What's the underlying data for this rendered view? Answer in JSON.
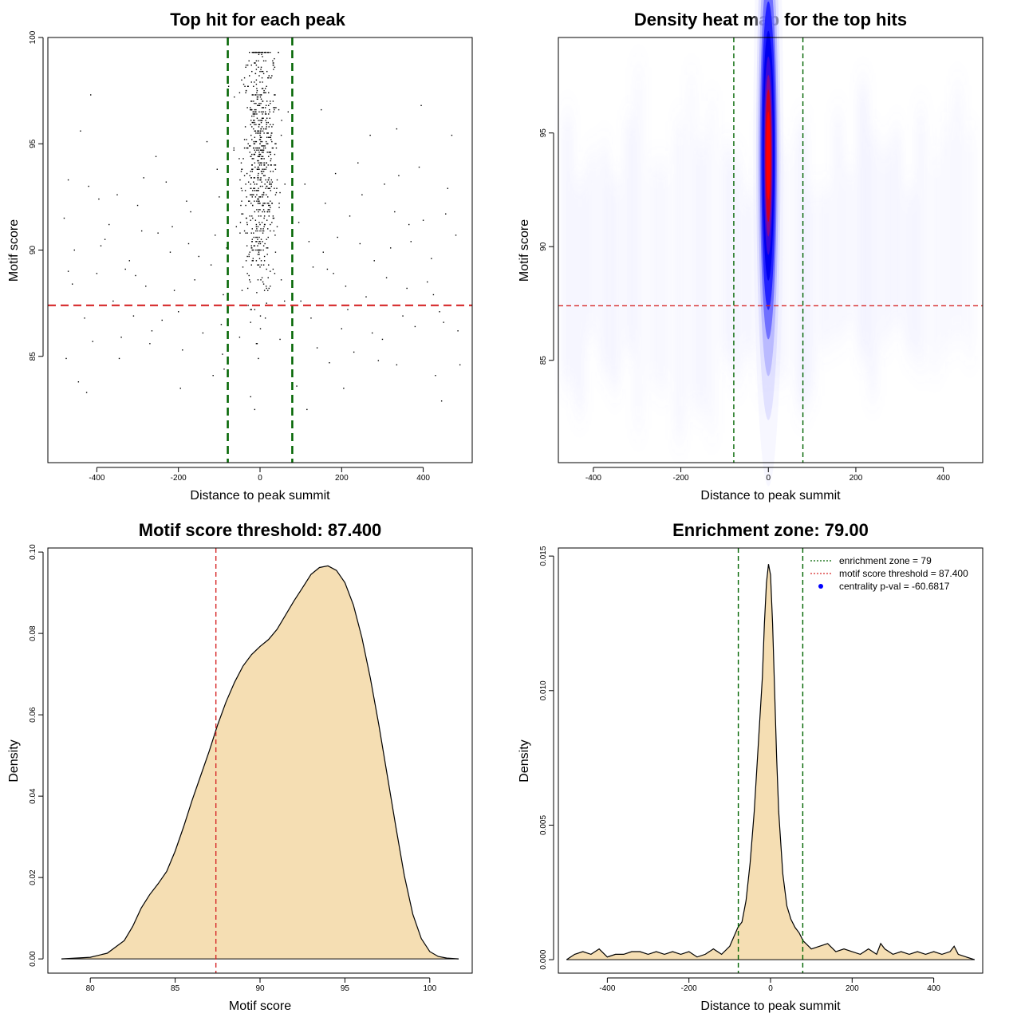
{
  "colors": {
    "threshold_line": "#d62728",
    "zone_line": "#006400",
    "density_fill": "#f5deb3",
    "point": "#000000",
    "heat_low": "#ffffff",
    "heat_mid": "#0000ff",
    "heat_high": "#ff0000",
    "legend_point": "#0000ff"
  },
  "chart_data": [
    {
      "type": "scatter",
      "title": "Top hit for each peak",
      "xlabel": "Distance to peak summit",
      "ylabel": "Motif score",
      "xlim": [
        -520,
        520
      ],
      "ylim": [
        80,
        100
      ],
      "xticks": [
        "-400",
        "-200",
        "0",
        "200",
        "400"
      ],
      "yticks": [
        "85",
        "90",
        "95",
        "100"
      ],
      "vlines": [
        -79,
        79
      ],
      "hline": 87.4,
      "points": [
        [
          -480,
          91.5
        ],
        [
          -470,
          89
        ],
        [
          -455,
          90
        ],
        [
          -440,
          95.6
        ],
        [
          -420,
          93
        ],
        [
          -410,
          85.7
        ],
        [
          -400,
          88.9
        ],
        [
          -390,
          90.2
        ],
        [
          -370,
          91.2
        ],
        [
          -350,
          92.6
        ],
        [
          -340,
          85.9
        ],
        [
          -320,
          89.5
        ],
        [
          -300,
          92.1
        ],
        [
          -280,
          88.3
        ],
        [
          -265,
          86.2
        ],
        [
          -250,
          90.8
        ],
        [
          -230,
          93.2
        ],
        [
          -210,
          88.1
        ],
        [
          -190,
          85.3
        ],
        [
          -170,
          91.8
        ],
        [
          -150,
          89.7
        ],
        [
          -130,
          95.1
        ],
        [
          -115,
          84.1
        ],
        [
          -100,
          92.5
        ],
        [
          -90,
          87.9
        ],
        [
          -82,
          90.1
        ],
        [
          -475,
          84.9
        ],
        [
          -445,
          83.8
        ],
        [
          -430,
          86.8
        ],
        [
          -380,
          90.5
        ],
        [
          -360,
          87.6
        ],
        [
          -330,
          89.1
        ],
        [
          -310,
          86.9
        ],
        [
          -290,
          90.9
        ],
        [
          -270,
          85.6
        ],
        [
          -240,
          86.7
        ],
        [
          -220,
          89.9
        ],
        [
          -200,
          87.1
        ],
        [
          -180,
          92.3
        ],
        [
          -160,
          88.6
        ],
        [
          -140,
          86.1
        ],
        [
          -120,
          89.3
        ],
        [
          -105,
          93.8
        ],
        [
          -95,
          86.5
        ],
        [
          -88,
          84.4
        ],
        [
          -460,
          88.4
        ],
        [
          -415,
          97.3
        ],
        [
          -395,
          92.4
        ],
        [
          -345,
          84.9
        ],
        [
          -305,
          88.8
        ],
        [
          -255,
          94.4
        ],
        [
          -215,
          91.1
        ],
        [
          -175,
          90.3
        ],
        [
          -135,
          87.4
        ],
        [
          -110,
          90.7
        ],
        [
          -92,
          85.1
        ],
        [
          -470,
          93.3
        ],
        [
          -425,
          83.3
        ],
        [
          -285,
          93.4
        ],
        [
          -195,
          83.5
        ],
        [
          100,
          87.6
        ],
        [
          120,
          90.4
        ],
        [
          140,
          85.4
        ],
        [
          160,
          92.2
        ],
        [
          180,
          88.9
        ],
        [
          200,
          86.3
        ],
        [
          220,
          91.6
        ],
        [
          240,
          94.1
        ],
        [
          260,
          87.8
        ],
        [
          280,
          89.5
        ],
        [
          300,
          85.8
        ],
        [
          320,
          90.1
        ],
        [
          340,
          93.5
        ],
        [
          360,
          88.2
        ],
        [
          380,
          86.4
        ],
        [
          400,
          91.4
        ],
        [
          420,
          89.6
        ],
        [
          440,
          87.1
        ],
        [
          460,
          92.9
        ],
        [
          480,
          90.7
        ],
        [
          90,
          83.6
        ],
        [
          110,
          93.1
        ],
        [
          130,
          89.2
        ],
        [
          150,
          96.6
        ],
        [
          170,
          84.7
        ],
        [
          190,
          90.6
        ],
        [
          210,
          88.3
        ],
        [
          230,
          85.2
        ],
        [
          250,
          92.6
        ],
        [
          270,
          95.4
        ],
        [
          290,
          84.8
        ],
        [
          310,
          88.7
        ],
        [
          330,
          91.8
        ],
        [
          350,
          86.9
        ],
        [
          370,
          90.4
        ],
        [
          390,
          93.9
        ],
        [
          410,
          88.5
        ],
        [
          430,
          84.1
        ],
        [
          450,
          86.6
        ],
        [
          470,
          95.4
        ],
        [
          95,
          91.3
        ],
        [
          125,
          86.8
        ],
        [
          155,
          89.9
        ],
        [
          185,
          93.6
        ],
        [
          215,
          87.2
        ],
        [
          245,
          90.3
        ],
        [
          275,
          86.1
        ],
        [
          305,
          93.1
        ],
        [
          335,
          84.6
        ],
        [
          365,
          91.2
        ],
        [
          395,
          96.8
        ],
        [
          425,
          87.9
        ],
        [
          455,
          91.7
        ],
        [
          485,
          86.2
        ],
        [
          490,
          84.6
        ],
        [
          445,
          82.9
        ],
        [
          205,
          83.5
        ],
        [
          165,
          89.1
        ],
        [
          115,
          82.5
        ],
        [
          335,
          95.7
        ]
      ],
      "central_points": 700,
      "central_sd": 22,
      "central_yrange": [
        82.5,
        99.3
      ]
    },
    {
      "type": "heatmap",
      "title": "Density heat map for the top hits",
      "xlabel": "Distance to peak summit",
      "ylabel": "Motif score",
      "xlim": [
        -480,
        490
      ],
      "ylim": [
        80.5,
        99.2
      ],
      "xticks": [
        "-400",
        "-200",
        "0",
        "200",
        "400"
      ],
      "yticks": [
        "85",
        "90",
        "95"
      ],
      "vlines": [
        -79,
        79
      ],
      "hline": 87.4,
      "peak": {
        "x": 0,
        "y": 94,
        "sx": 14,
        "sy": 3.4
      }
    },
    {
      "type": "area",
      "title": "Motif score threshold: 87.400",
      "xlabel": "Motif score",
      "ylabel": "Density",
      "xlim": [
        77.5,
        102.5
      ],
      "ylim": [
        -0.0035,
        0.101
      ],
      "xticks": [
        "80",
        "85",
        "90",
        "95",
        "100"
      ],
      "yticks": [
        "0.00",
        "0.02",
        "0.04",
        "0.06",
        "0.08",
        "0.10"
      ],
      "vline": 87.4,
      "x": [
        78.3,
        80,
        81,
        82,
        82.5,
        83,
        83.5,
        84,
        84.5,
        85,
        85.5,
        86,
        86.5,
        87,
        87.5,
        88,
        88.5,
        89,
        89.5,
        90,
        90.5,
        91,
        91.5,
        92,
        92.5,
        93,
        93.5,
        94,
        94.5,
        95,
        95.5,
        96,
        96.5,
        97,
        97.5,
        98,
        98.5,
        99,
        99.5,
        100,
        100.5,
        101,
        101.7
      ],
      "y": [
        0.0,
        0.0004,
        0.0014,
        0.0045,
        0.008,
        0.0125,
        0.0158,
        0.0185,
        0.0215,
        0.0265,
        0.0325,
        0.039,
        0.045,
        0.051,
        0.0575,
        0.0632,
        0.068,
        0.072,
        0.0748,
        0.0768,
        0.0785,
        0.081,
        0.0845,
        0.088,
        0.0912,
        0.0945,
        0.0962,
        0.0966,
        0.0955,
        0.0925,
        0.087,
        0.079,
        0.069,
        0.0575,
        0.045,
        0.0325,
        0.0205,
        0.011,
        0.005,
        0.0018,
        0.0006,
        0.0002,
        0.0
      ]
    },
    {
      "type": "area",
      "title": "Enrichment zone: 79.00",
      "xlabel": "Distance to peak summit",
      "ylabel": "Density",
      "xlim": [
        -520,
        520
      ],
      "ylim": [
        -0.0005,
        0.0153
      ],
      "xticks": [
        "-400",
        "-200",
        "0",
        "200",
        "400"
      ],
      "yticks": [
        "0.000",
        "0.005",
        "0.010",
        "0.015"
      ],
      "vlines": [
        -79,
        79
      ],
      "x": [
        -500,
        -480,
        -460,
        -440,
        -420,
        -400,
        -380,
        -360,
        -340,
        -320,
        -300,
        -280,
        -260,
        -240,
        -220,
        -200,
        -180,
        -160,
        -140,
        -120,
        -100,
        -80,
        -70,
        -60,
        -50,
        -40,
        -30,
        -20,
        -15,
        -10,
        -5,
        0,
        5,
        10,
        15,
        20,
        30,
        40,
        50,
        60,
        70,
        80,
        100,
        120,
        140,
        160,
        180,
        200,
        220,
        240,
        260,
        270,
        280,
        300,
        320,
        340,
        360,
        380,
        400,
        420,
        440,
        450,
        460,
        480,
        500
      ],
      "y": [
        0.0,
        0.0002,
        0.0003,
        0.0002,
        0.0004,
        0.0001,
        0.0002,
        0.0002,
        0.0003,
        0.0003,
        0.0002,
        0.0003,
        0.0002,
        0.0003,
        0.0002,
        0.0003,
        0.0001,
        0.0002,
        0.0004,
        0.0002,
        0.0005,
        0.0012,
        0.0014,
        0.0022,
        0.0036,
        0.0055,
        0.008,
        0.0105,
        0.0125,
        0.014,
        0.0147,
        0.0143,
        0.0125,
        0.01,
        0.0075,
        0.0055,
        0.0032,
        0.002,
        0.0015,
        0.0012,
        0.001,
        0.0007,
        0.0004,
        0.0005,
        0.0006,
        0.0003,
        0.0004,
        0.0003,
        0.0002,
        0.0004,
        0.0002,
        0.0006,
        0.0004,
        0.0002,
        0.0003,
        0.0002,
        0.0003,
        0.0002,
        0.0003,
        0.0002,
        0.0003,
        0.0005,
        0.0002,
        0.0001,
        0.0
      ],
      "legend": [
        {
          "label": "enrichment zone = 79",
          "kind": "dotted",
          "color": "#006400"
        },
        {
          "label": "motif score threshold = 87.400",
          "kind": "dotted",
          "color": "#d62728"
        },
        {
          "label": "centrality p-val = -60.6817",
          "kind": "point",
          "color": "#0000ff"
        }
      ]
    }
  ]
}
